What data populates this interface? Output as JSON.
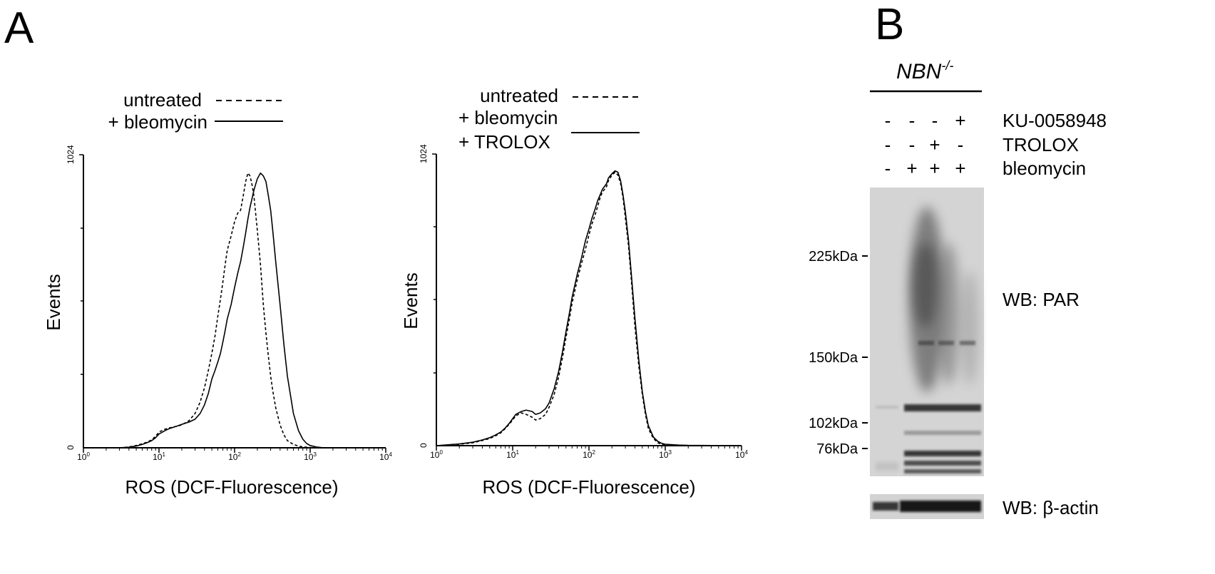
{
  "panel_a_label": "A",
  "panel_b_label": "B",
  "chart_data": [
    {
      "type": "line",
      "title": "",
      "xlabel": "ROS (DCF-Fluorescence)",
      "ylabel": "Events",
      "xscale": "log",
      "xlim": [
        1,
        10000
      ],
      "ylim": [
        0,
        1024
      ],
      "xticks": [
        {
          "base": "10",
          "exp": "0"
        },
        {
          "base": "10",
          "exp": "1"
        },
        {
          "base": "10",
          "exp": "2"
        },
        {
          "base": "10",
          "exp": "3"
        },
        {
          "base": "10",
          "exp": "4"
        }
      ],
      "yticks": [
        "0",
        "1024"
      ],
      "legend_placement": "top-right",
      "legend": [
        {
          "label": "untreated",
          "style": "dashed"
        },
        {
          "label": "+ bleomycin",
          "style": "solid"
        }
      ],
      "series": [
        {
          "name": "untreated",
          "style": "dashed",
          "x": [
            3,
            4,
            5,
            6,
            7,
            8,
            9,
            10,
            12,
            14,
            17,
            20,
            25,
            30,
            35,
            40,
            45,
            50,
            55,
            60,
            65,
            70,
            75,
            80,
            90,
            100,
            110,
            120,
            130,
            140,
            150,
            160,
            170,
            180,
            190,
            200,
            220,
            240,
            260,
            280,
            300,
            320,
            350,
            400,
            450,
            500,
            600,
            700,
            800,
            900,
            1000,
            1200
          ],
          "y": [
            0,
            3,
            8,
            14,
            20,
            28,
            40,
            55,
            65,
            70,
            75,
            80,
            95,
            120,
            160,
            210,
            270,
            330,
            390,
            460,
            520,
            580,
            640,
            690,
            740,
            790,
            820,
            830,
            880,
            930,
            960,
            950,
            920,
            880,
            820,
            760,
            640,
            500,
            400,
            320,
            250,
            200,
            140,
            80,
            45,
            25,
            12,
            6,
            3,
            2,
            1,
            0
          ]
        },
        {
          "name": "+ bleomycin",
          "style": "solid",
          "x": [
            3,
            4,
            5,
            6,
            7,
            8,
            9,
            10,
            12,
            14,
            17,
            20,
            25,
            30,
            35,
            40,
            45,
            50,
            55,
            60,
            65,
            70,
            75,
            80,
            90,
            100,
            110,
            120,
            130,
            140,
            150,
            160,
            170,
            180,
            190,
            200,
            220,
            240,
            260,
            280,
            300,
            320,
            350,
            400,
            450,
            500,
            600,
            700,
            800,
            900,
            1000,
            1200,
            1500
          ],
          "y": [
            0,
            2,
            6,
            12,
            18,
            25,
            35,
            48,
            60,
            68,
            75,
            82,
            90,
            100,
            120,
            150,
            190,
            240,
            270,
            300,
            330,
            370,
            410,
            450,
            500,
            560,
            610,
            650,
            700,
            750,
            800,
            840,
            870,
            900,
            920,
            940,
            960,
            950,
            930,
            880,
            830,
            760,
            650,
            500,
            360,
            250,
            120,
            60,
            30,
            15,
            8,
            3,
            0
          ]
        }
      ]
    },
    {
      "type": "line",
      "title": "",
      "xlabel": "ROS (DCF-Fluorescence)",
      "ylabel": "Events",
      "xscale": "log",
      "xlim": [
        1,
        10000
      ],
      "ylim": [
        0,
        1024
      ],
      "xticks": [
        {
          "base": "10",
          "exp": "0"
        },
        {
          "base": "10",
          "exp": "1"
        },
        {
          "base": "10",
          "exp": "2"
        },
        {
          "base": "10",
          "exp": "3"
        },
        {
          "base": "10",
          "exp": "4"
        }
      ],
      "yticks": [
        "0",
        "1024"
      ],
      "legend_placement": "top-right",
      "legend": [
        {
          "label": "untreated",
          "style": "dashed"
        },
        {
          "label": "+ bleomycin",
          "style": "none"
        },
        {
          "label": "+ TROLOX",
          "style": "solid"
        }
      ],
      "series": [
        {
          "name": "untreated",
          "style": "dashed",
          "x": [
            1,
            2,
            3,
            4,
            5,
            6,
            7,
            8,
            9,
            10,
            11,
            13,
            15,
            18,
            20,
            23,
            27,
            30,
            35,
            40,
            45,
            50,
            55,
            60,
            70,
            80,
            90,
            100,
            110,
            120,
            130,
            140,
            150,
            160,
            170,
            180,
            200,
            220,
            240,
            260,
            280,
            300,
            330,
            360,
            400,
            450,
            500,
            550,
            600,
            700,
            800,
            900,
            1000,
            1500,
            2000,
            10000
          ],
          "y": [
            0,
            5,
            10,
            18,
            25,
            35,
            45,
            60,
            75,
            90,
            105,
            115,
            110,
            100,
            90,
            95,
            110,
            135,
            180,
            240,
            310,
            380,
            440,
            500,
            580,
            640,
            690,
            740,
            780,
            810,
            840,
            870,
            890,
            900,
            910,
            930,
            950,
            960,
            950,
            920,
            870,
            800,
            700,
            580,
            420,
            280,
            180,
            110,
            60,
            25,
            10,
            5,
            3,
            1,
            0,
            0
          ]
        },
        {
          "name": "+ bleomycin + TROLOX",
          "style": "solid",
          "x": [
            1,
            2,
            3,
            4,
            5,
            6,
            7,
            8,
            9,
            10,
            11,
            13,
            15,
            18,
            20,
            23,
            27,
            30,
            35,
            40,
            45,
            50,
            55,
            60,
            70,
            80,
            90,
            100,
            110,
            120,
            130,
            140,
            150,
            160,
            170,
            180,
            200,
            220,
            240,
            260,
            280,
            300,
            330,
            360,
            400,
            450,
            500,
            550,
            600,
            700,
            800,
            900,
            1000,
            1500,
            2000,
            10000
          ],
          "y": [
            0,
            6,
            12,
            20,
            28,
            38,
            48,
            62,
            78,
            95,
            110,
            120,
            125,
            120,
            110,
            115,
            130,
            150,
            200,
            260,
            330,
            400,
            460,
            520,
            600,
            660,
            720,
            760,
            800,
            830,
            860,
            880,
            900,
            910,
            920,
            940,
            955,
            965,
            960,
            930,
            880,
            820,
            720,
            600,
            450,
            300,
            190,
            120,
            70,
            30,
            15,
            8,
            5,
            2,
            1,
            0
          ]
        }
      ]
    }
  ],
  "blot": {
    "genotype_base": "NBN",
    "genotype_sup": "-/-",
    "treatments": [
      {
        "name": "KU-0058948",
        "signs": [
          "-",
          "-",
          "-",
          "+"
        ]
      },
      {
        "name": "TROLOX",
        "signs": [
          "-",
          "-",
          "+",
          "-"
        ]
      },
      {
        "name": "bleomycin",
        "signs": [
          "-",
          "+",
          "+",
          "+"
        ]
      }
    ],
    "markers": [
      "225kDa",
      "150kDa",
      "102kDa",
      "76kDa"
    ],
    "wb_par_label": "WB: PAR",
    "wb_actin_label": "WB: β-actin"
  }
}
